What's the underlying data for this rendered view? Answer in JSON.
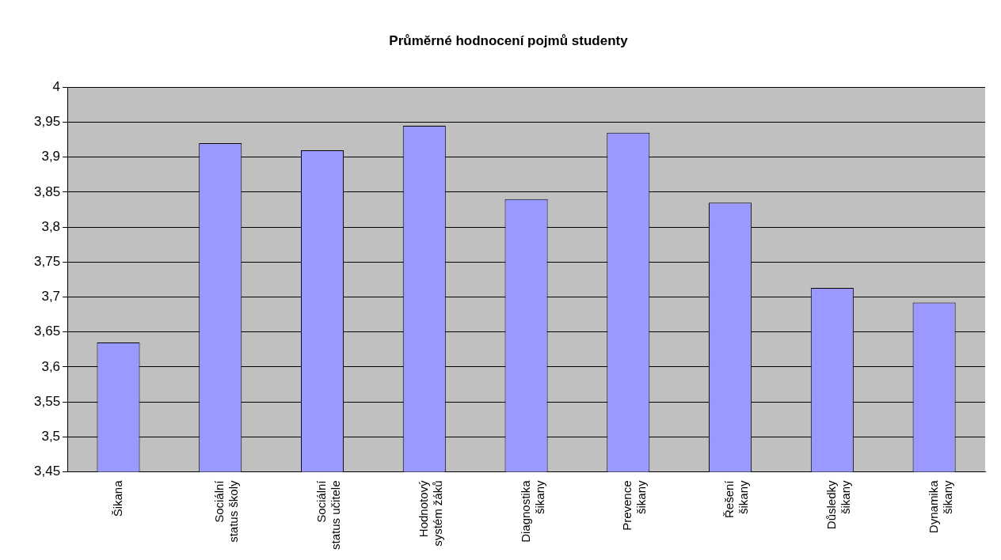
{
  "chart_data": {
    "type": "bar",
    "title": "Průměrné hodnocení pojmů studenty",
    "categories": [
      "Šikana",
      "Sociální status školy",
      "Sociální status učitele",
      "Hodnotový systém žáků",
      "Diagnostika šikany",
      "Prevence šikany",
      "Řešení šikany",
      "Důsledky šikany",
      "Dynamika šikany"
    ],
    "values": [
      3.635,
      3.92,
      3.91,
      3.945,
      3.84,
      3.935,
      3.835,
      3.713,
      3.692
    ],
    "color": "#9999ff",
    "ylim": [
      3.45,
      4
    ],
    "yticks": [
      {
        "value": 3.45,
        "label": "3,45"
      },
      {
        "value": 3.5,
        "label": "3,5"
      },
      {
        "value": 3.55,
        "label": "3,55"
      },
      {
        "value": 3.6,
        "label": "3,6"
      },
      {
        "value": 3.65,
        "label": "3,65"
      },
      {
        "value": 3.7,
        "label": "3,7"
      },
      {
        "value": 3.75,
        "label": "3,75"
      },
      {
        "value": 3.8,
        "label": "3,8"
      },
      {
        "value": 3.85,
        "label": "3,85"
      },
      {
        "value": 3.9,
        "label": "3,9"
      },
      {
        "value": 3.95,
        "label": "3,95"
      },
      4
    ],
    "grid": "y",
    "legend": false
  }
}
